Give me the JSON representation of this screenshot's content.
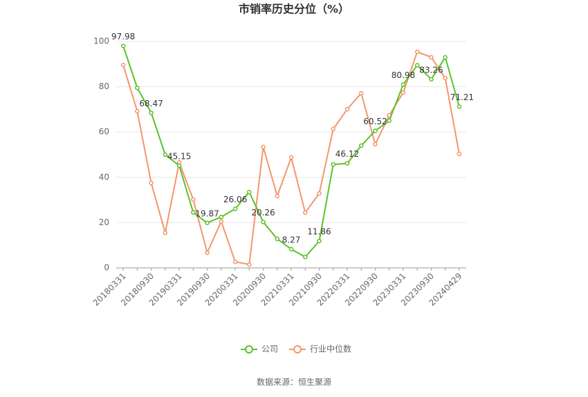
{
  "chart_data": {
    "type": "line",
    "title": "市销率历史分位（%）",
    "source": "数据来源：恒生聚源",
    "categories": [
      "20180331",
      null,
      "20180930",
      null,
      "20190331",
      null,
      "20190930",
      null,
      "20200331",
      null,
      "20200930",
      null,
      "20210331",
      null,
      "20210930",
      null,
      "20220331",
      null,
      "20220930",
      null,
      "20230331",
      null,
      "20230930",
      null,
      "20240429"
    ],
    "series": [
      {
        "name": "公司",
        "color": "#5cc128",
        "values": [
          97.98,
          79.5,
          68.47,
          50,
          45.15,
          24.5,
          19.87,
          22.5,
          26.06,
          33.5,
          20.26,
          12.8,
          8.27,
          4.8,
          11.86,
          45.7,
          46.12,
          54,
          60.52,
          65,
          80.98,
          89.5,
          83.26,
          93,
          71.21
        ]
      },
      {
        "name": "行业中位数",
        "color": "#f4956a",
        "values": [
          89.6,
          69.2,
          37.5,
          15.5,
          46.6,
          30.2,
          6.7,
          20.5,
          2.7,
          1.5,
          53.4,
          31.7,
          48.8,
          24.4,
          32.9,
          61.3,
          70.1,
          77.1,
          54.6,
          67.4,
          77.4,
          95.4,
          93.0,
          83.8,
          50.3
        ]
      }
    ],
    "ylim": [
      0,
      100
    ],
    "yticks": [
      0,
      20,
      40,
      60,
      80,
      100
    ],
    "grid": true
  }
}
